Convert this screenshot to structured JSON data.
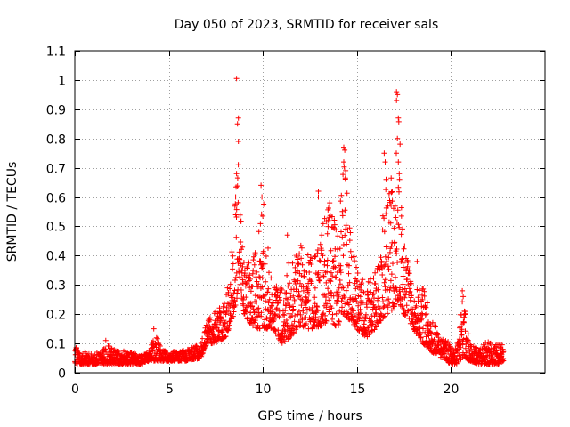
{
  "chart_data": {
    "type": "scatter",
    "title": "Day 050 of 2023, SRMTID for receiver sals",
    "xlabel": "GPS time / hours",
    "ylabel": "SRMTID / TECUs",
    "xlim": [
      0,
      25
    ],
    "ylim": [
      0,
      1.1
    ],
    "x_ticks": [
      0,
      5,
      10,
      15,
      20
    ],
    "x_tick_labels": [
      "0",
      "5",
      "10",
      "15",
      "20"
    ],
    "y_ticks": [
      0,
      0.1,
      0.2,
      0.3,
      0.4,
      0.5,
      0.6,
      0.7,
      0.8,
      0.9,
      1,
      1.1
    ],
    "y_tick_labels": [
      "0",
      "0.1",
      "0.2",
      "0.3",
      "0.4",
      "0.5",
      "0.6",
      "0.7",
      "0.8",
      "0.9",
      "1",
      "1.1"
    ],
    "grid": true,
    "marker": "plus",
    "color": "#ff0000",
    "series": [
      {
        "name": "SRMTID",
        "envelope": {
          "x": [
            0,
            1,
            1.7,
            2,
            3,
            3.5,
            4,
            4.3,
            4.6,
            5,
            6,
            6.7,
            7,
            7.5,
            8,
            8.5,
            8.6,
            8.8,
            9,
            9.5,
            10,
            10.5,
            11,
            11.5,
            12,
            12.5,
            13,
            13.5,
            14,
            14.3,
            14.6,
            15,
            15.5,
            16,
            16.3,
            16.6,
            17,
            17.2,
            17.5,
            18,
            18.5,
            19,
            19.5,
            20,
            20.3,
            20.6,
            20.8,
            21,
            21.5,
            22,
            22.5,
            22.8
          ],
          "low": [
            0.03,
            0.03,
            0.03,
            0.03,
            0.03,
            0.03,
            0.04,
            0.04,
            0.04,
            0.04,
            0.04,
            0.05,
            0.1,
            0.1,
            0.12,
            0.2,
            0.25,
            0.3,
            0.2,
            0.15,
            0.15,
            0.15,
            0.1,
            0.12,
            0.15,
            0.15,
            0.15,
            0.18,
            0.15,
            0.2,
            0.18,
            0.15,
            0.12,
            0.15,
            0.18,
            0.2,
            0.22,
            0.25,
            0.2,
            0.15,
            0.1,
            0.07,
            0.05,
            0.03,
            0.03,
            0.05,
            0.05,
            0.04,
            0.03,
            0.03,
            0.03,
            0.04
          ],
          "high": [
            0.09,
            0.06,
            0.1,
            0.08,
            0.07,
            0.06,
            0.08,
            0.15,
            0.08,
            0.07,
            0.08,
            0.1,
            0.17,
            0.22,
            0.24,
            0.55,
            0.9,
            0.7,
            0.4,
            0.4,
            0.62,
            0.3,
            0.3,
            0.4,
            0.45,
            0.4,
            0.45,
            0.6,
            0.5,
            0.77,
            0.55,
            0.35,
            0.3,
            0.35,
            0.55,
            0.75,
            0.6,
            0.95,
            0.45,
            0.3,
            0.3,
            0.18,
            0.12,
            0.1,
            0.08,
            0.27,
            0.22,
            0.1,
            0.08,
            0.12,
            0.1,
            0.1
          ]
        },
        "spikes": [
          {
            "x": 8.6,
            "y": 1.005
          },
          {
            "x": 8.7,
            "y": 0.87
          },
          {
            "x": 8.65,
            "y": 0.85
          },
          {
            "x": 8.7,
            "y": 0.79
          },
          {
            "x": 8.6,
            "y": 0.68
          },
          {
            "x": 8.55,
            "y": 0.6
          },
          {
            "x": 9.9,
            "y": 0.64
          },
          {
            "x": 9.95,
            "y": 0.6
          },
          {
            "x": 12.95,
            "y": 0.62
          },
          {
            "x": 12.95,
            "y": 0.6
          },
          {
            "x": 14.3,
            "y": 0.77
          },
          {
            "x": 14.35,
            "y": 0.76
          },
          {
            "x": 14.3,
            "y": 0.72
          },
          {
            "x": 14.4,
            "y": 0.69
          },
          {
            "x": 16.45,
            "y": 0.75
          },
          {
            "x": 16.5,
            "y": 0.72
          },
          {
            "x": 16.55,
            "y": 0.66
          },
          {
            "x": 17.1,
            "y": 0.96
          },
          {
            "x": 17.15,
            "y": 0.95
          },
          {
            "x": 17.1,
            "y": 0.93
          },
          {
            "x": 17.2,
            "y": 0.87
          },
          {
            "x": 17.15,
            "y": 0.8
          },
          {
            "x": 17.2,
            "y": 0.72
          },
          {
            "x": 17.25,
            "y": 0.68
          },
          {
            "x": 20.6,
            "y": 0.28
          },
          {
            "x": 20.65,
            "y": 0.26
          },
          {
            "x": 18.2,
            "y": 0.38
          },
          {
            "x": 4.2,
            "y": 0.15
          },
          {
            "x": 1.65,
            "y": 0.11
          },
          {
            "x": 11.3,
            "y": 0.47
          }
        ]
      }
    ]
  }
}
